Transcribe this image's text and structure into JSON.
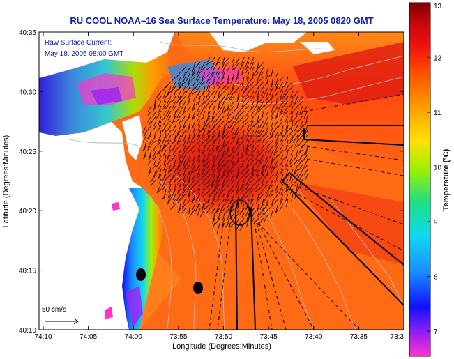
{
  "title": "RU COOL  NOAA–16  Sea Surface Temperature:  May 18, 2005 0820 GMT",
  "annotation": {
    "line1": "Raw Surface Current:",
    "line2": "May 18, 2005 08:00 GMT"
  },
  "x_axis": {
    "label": "Longitude (Degrees:Minutes)",
    "ticks": [
      "74:10",
      "74:05",
      "74:00",
      "73:55",
      "73:50",
      "73:45",
      "73:40",
      "73:35",
      "73:3"
    ]
  },
  "y_axis": {
    "label": "Latitude (Degrees:Minutes)",
    "ticks": [
      "40:35",
      "40:30",
      "40:25",
      "40:20",
      "40:15",
      "40:10"
    ]
  },
  "colorbar": {
    "label": "Temperature (°C)",
    "ticks": [
      "13",
      "12",
      "11",
      "10",
      "9",
      "8",
      "7"
    ],
    "colors": [
      "#ff33cc",
      "#a020f0",
      "#1010ff",
      "#1a8fff",
      "#10d8f0",
      "#20e080",
      "#a0f000",
      "#ffe000",
      "#ffa000",
      "#ff5000",
      "#f01010",
      "#c80808",
      "#800000"
    ]
  },
  "scale_bar": {
    "label": "50 cm/s"
  },
  "colors": {
    "water_warm": "#ff5a14",
    "water_mid": "#ff8a18",
    "water_cool": "#1aa0ff",
    "land": "#ffffff",
    "vector": "#000000",
    "contour": "#b8b8b8"
  }
}
